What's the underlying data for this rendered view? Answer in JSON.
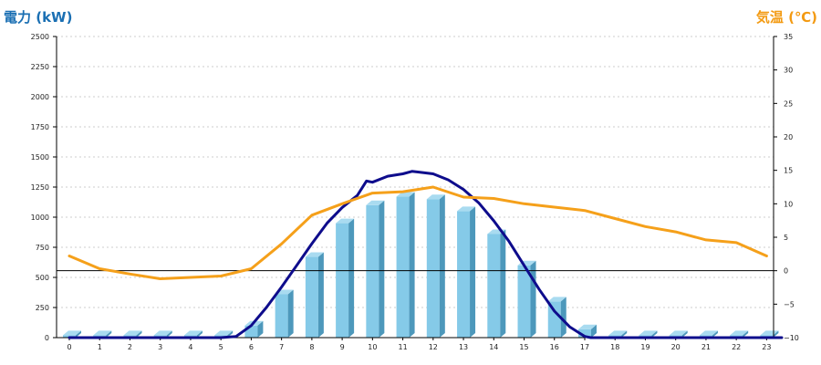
{
  "colors": {
    "left_title": "#1a6fb3",
    "right_title": "#f39a12",
    "bar_front": "#85cae8",
    "bar_side": "#4d98bb",
    "bar_top": "#a9dbf0",
    "power_line": "#0e0c8c",
    "temp_line": "#f5a01a",
    "grid": "#bdbdbd",
    "axis": "#000000"
  },
  "chart_data": {
    "type": "bar",
    "left_axis_title": "電力 (kW)",
    "right_axis_title": "気温 (℃)",
    "categories": [
      "0",
      "1",
      "2",
      "3",
      "4",
      "5",
      "6",
      "7",
      "8",
      "9",
      "10",
      "11",
      "12",
      "13",
      "14",
      "15",
      "16",
      "17",
      "18",
      "19",
      "20",
      "21",
      "22",
      "23"
    ],
    "ylim_left": [
      0,
      2500
    ],
    "ylim_right": [
      -10,
      35
    ],
    "left_ticks": [
      "0",
      "250",
      "500",
      "750",
      "1000",
      "1250",
      "1500",
      "1750",
      "2000",
      "2250",
      "2500"
    ],
    "right_ticks": [
      "−10",
      "−5",
      "0",
      "5",
      "10",
      "15",
      "20",
      "25",
      "30",
      "35"
    ],
    "grid": true,
    "bar_series": {
      "values": [
        20,
        20,
        20,
        20,
        20,
        20,
        100,
        360,
        670,
        950,
        1100,
        1170,
        1150,
        1050,
        860,
        600,
        300,
        70,
        20,
        20,
        20,
        20,
        20,
        20
      ]
    },
    "power_line": {
      "x": [
        0,
        5,
        5.5,
        6,
        6.5,
        7,
        7.5,
        8,
        8.5,
        9,
        9.5,
        9.8,
        10,
        10.5,
        11,
        11.3,
        11.5,
        12,
        12.5,
        13,
        13.5,
        14,
        14.5,
        15,
        15.5,
        16,
        16.5,
        17,
        17.2,
        23.5
      ],
      "y": [
        0,
        0,
        10,
        100,
        250,
        420,
        600,
        780,
        950,
        1080,
        1180,
        1300,
        1290,
        1340,
        1360,
        1380,
        1375,
        1360,
        1310,
        1230,
        1120,
        970,
        800,
        600,
        400,
        220,
        90,
        10,
        0,
        0
      ]
    },
    "temp_line": {
      "x": [
        0,
        1,
        2,
        3,
        4,
        5,
        6,
        7,
        8,
        9,
        10,
        11,
        12,
        13,
        14,
        15,
        16,
        17,
        18,
        19,
        20,
        21,
        22,
        23
      ],
      "y": [
        2.2,
        0.3,
        -0.5,
        -1.2,
        -1.0,
        -0.8,
        0.3,
        4.0,
        8.3,
        10.0,
        11.6,
        11.8,
        12.5,
        11.0,
        10.8,
        10.0,
        9.5,
        9.0,
        7.8,
        6.6,
        5.8,
        4.6,
        4.2,
        2.2
      ]
    }
  }
}
